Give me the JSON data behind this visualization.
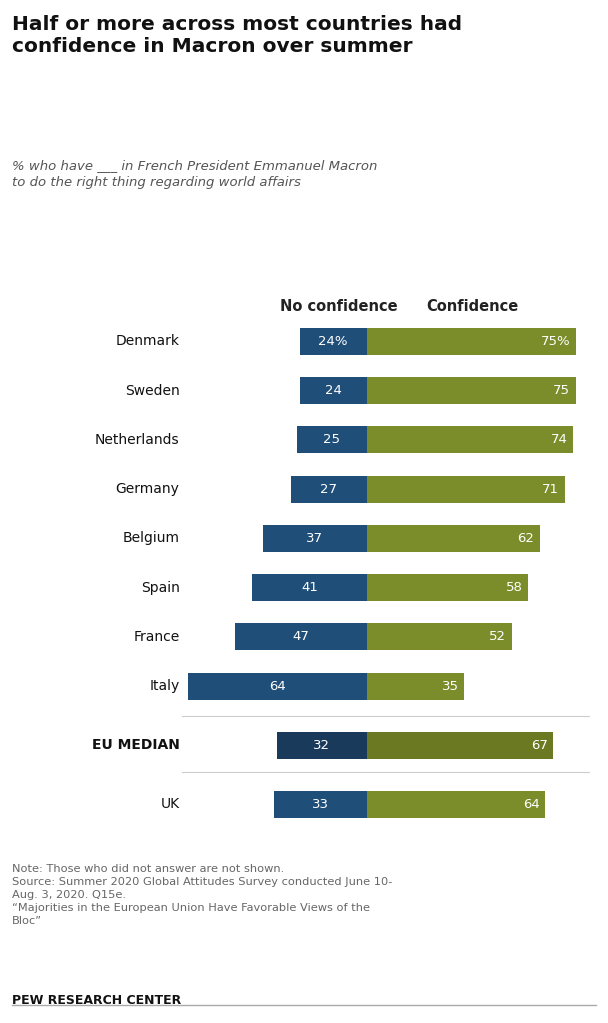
{
  "title": "Half or more across most countries had\nconfidence in Macron over summer",
  "subtitle_line1": "% who have ___ in French President Emmanuel Macron",
  "subtitle_line2": "to do the right thing regarding world affairs",
  "col1_label": "No confidence",
  "col2_label": "Confidence",
  "countries": [
    "Denmark",
    "Sweden",
    "Netherlands",
    "Germany",
    "Belgium",
    "Spain",
    "France",
    "Italy",
    "EU MEDIAN",
    "UK"
  ],
  "no_confidence": [
    24,
    24,
    25,
    27,
    37,
    41,
    47,
    64,
    32,
    33
  ],
  "confidence": [
    75,
    75,
    74,
    71,
    62,
    58,
    52,
    35,
    67,
    64
  ],
  "show_pct_symbol": [
    true,
    false,
    false,
    false,
    false,
    false,
    false,
    false,
    false,
    false
  ],
  "no_confidence_color": "#1F4E79",
  "confidence_color": "#7B8C2A",
  "eu_median_no_confidence_color": "#1A3A5C",
  "eu_median_confidence_color": "#6B7A22",
  "background_color": "#FFFFFF",
  "note_text": "Note: Those who did not answer are not shown.\nSource: Summer 2020 Global Attitudes Survey conducted June 10-\nAug. 3, 2020. Q15e.\n“Majorities in the European Union Have Favorable Views of the\nBloc”",
  "source_label": "PEW RESEARCH CENTER",
  "bar_height": 0.55
}
